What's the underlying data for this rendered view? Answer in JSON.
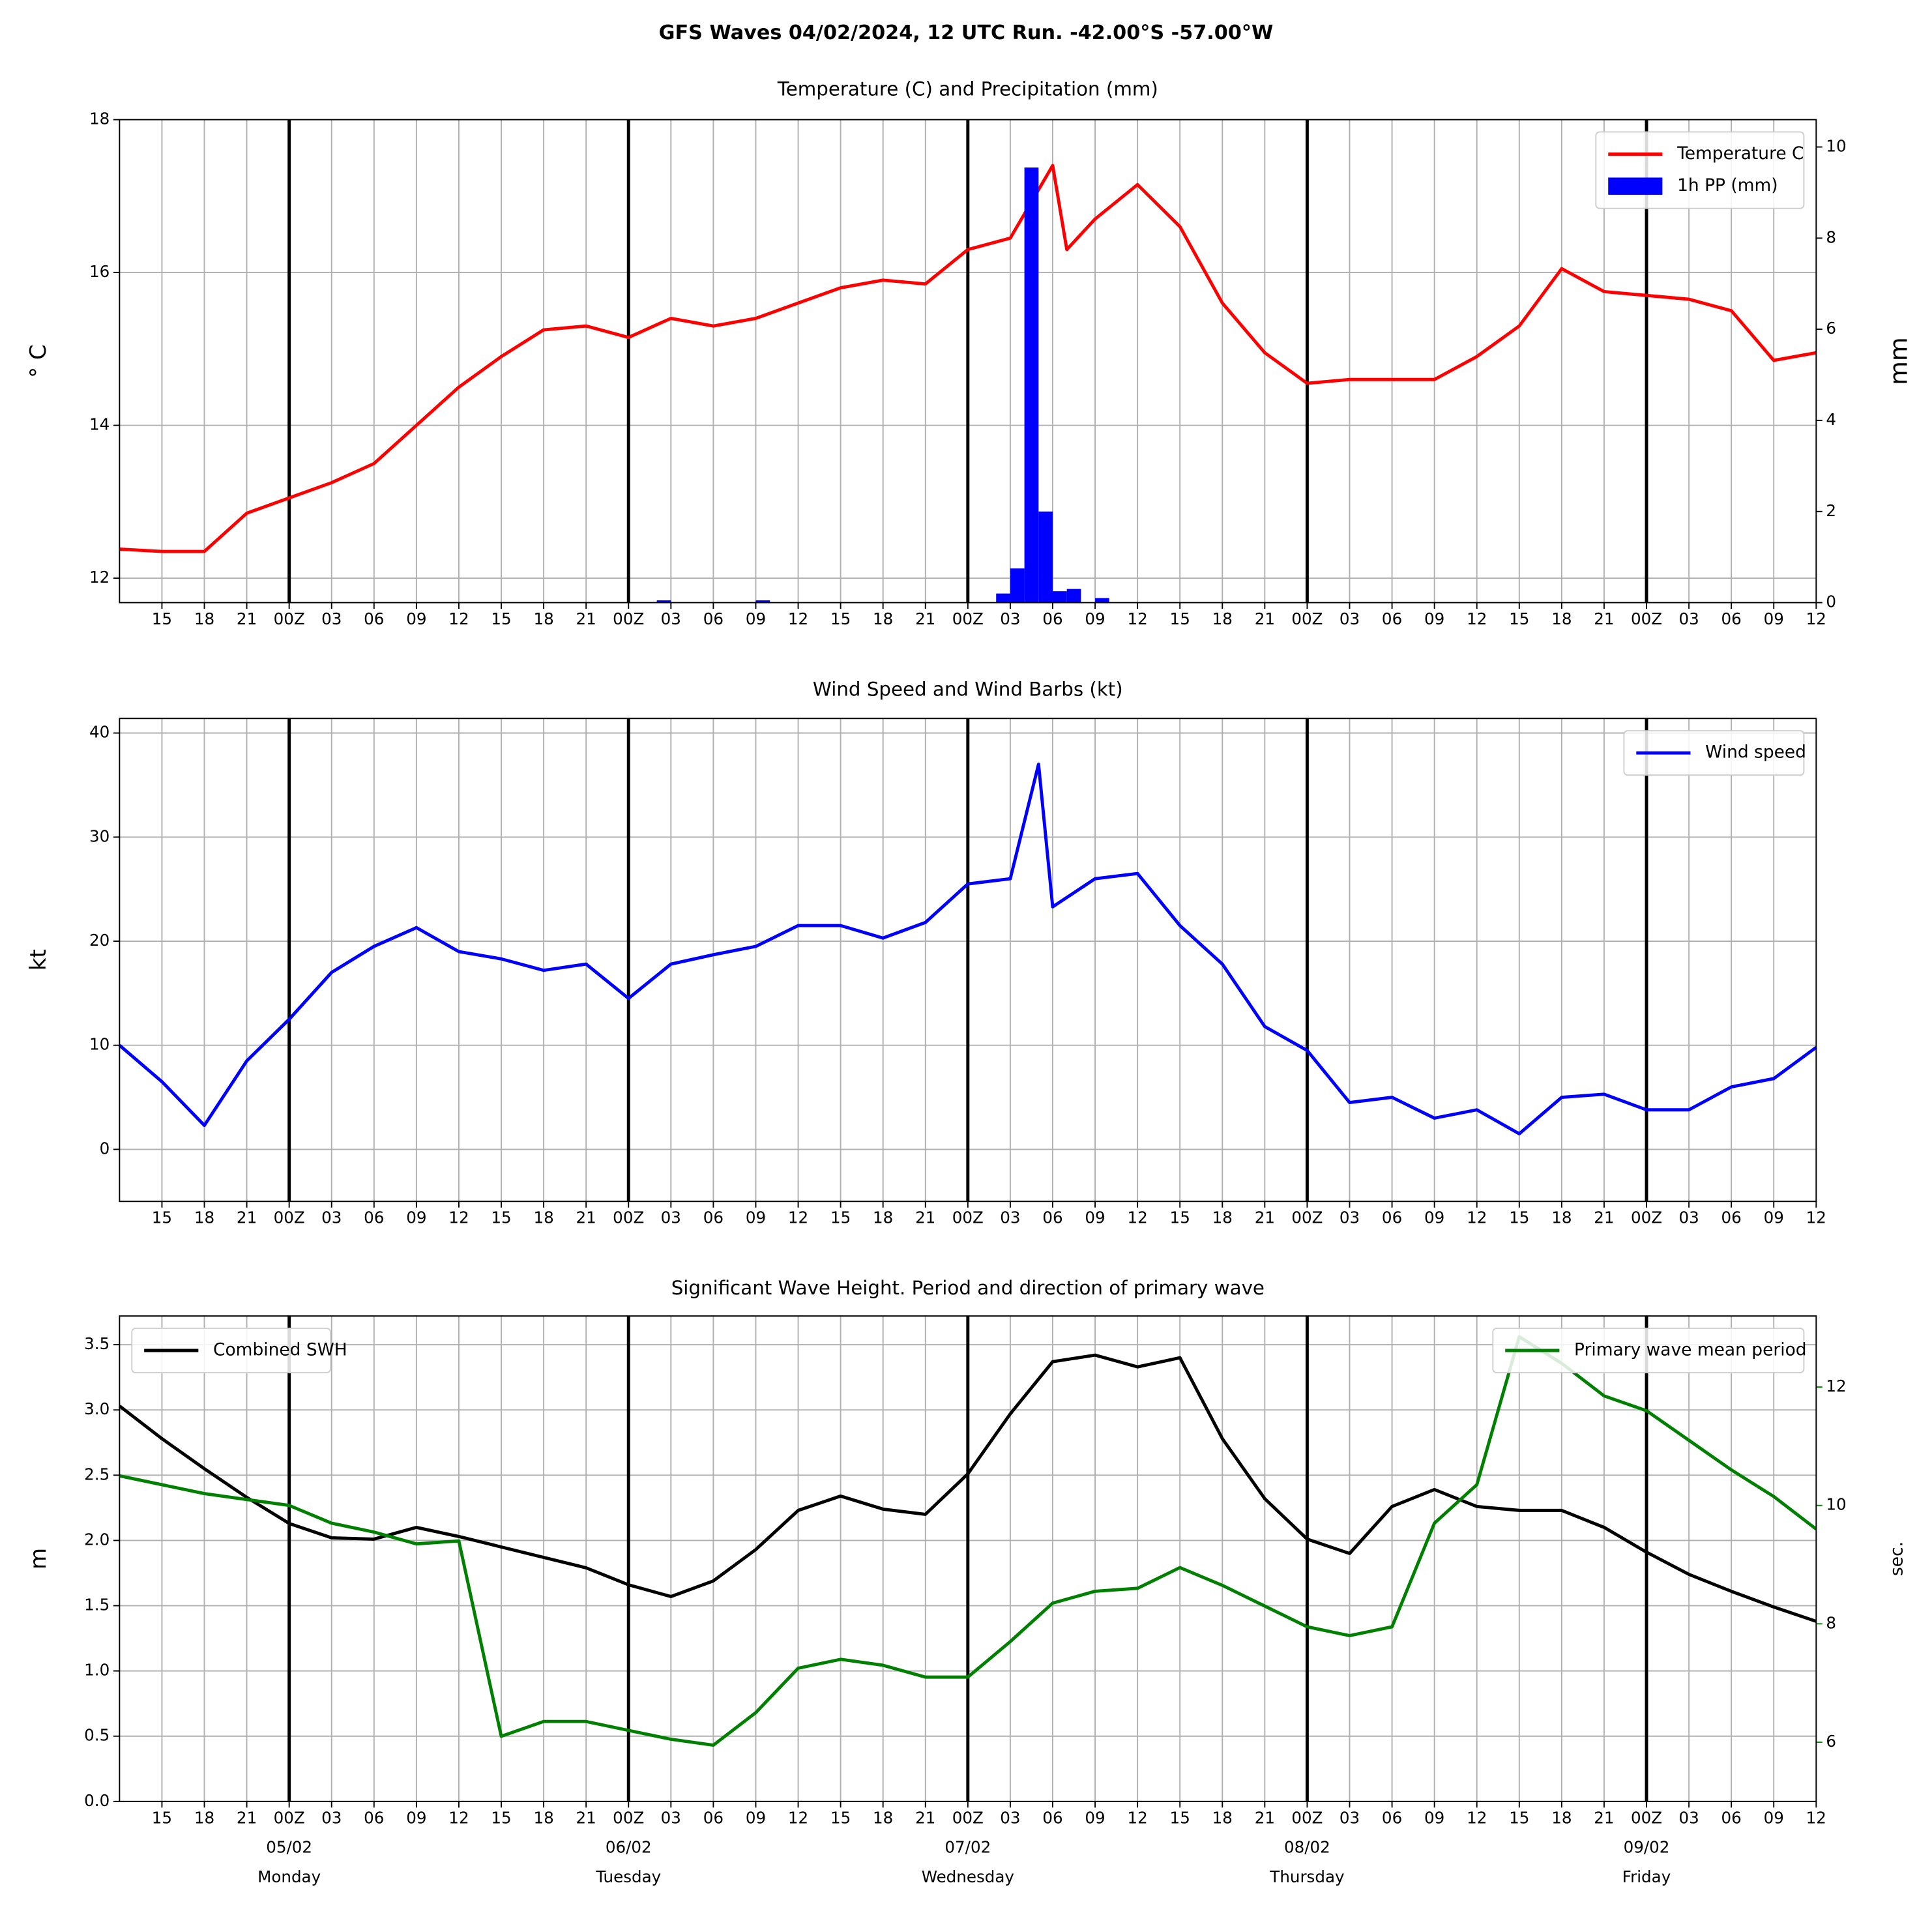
{
  "suptitle": "GFS Waves 04/02/2024, 12 UTC Run. -42.00°S -57.00°W",
  "chart_data": [
    {
      "type": "line",
      "title": "Temperature (C) and Precipitation (mm)",
      "ylabel": "° C",
      "y2label": "mm",
      "xlim": [
        0,
        120
      ],
      "ylim": [
        11.68,
        18.0
      ],
      "y2lim": [
        0,
        10.6
      ],
      "yticks": [
        12,
        14,
        16,
        18
      ],
      "y2ticks": [
        0,
        2,
        4,
        6,
        8,
        10
      ],
      "grid": true,
      "day_lines": [
        12,
        36,
        60,
        84,
        108
      ],
      "xticks": [
        {
          "value": 3,
          "label": "15"
        },
        {
          "value": 6,
          "label": "18"
        },
        {
          "value": 9,
          "label": "21"
        },
        {
          "value": 12,
          "label": "00Z"
        },
        {
          "value": 15,
          "label": "03"
        },
        {
          "value": 18,
          "label": "06"
        },
        {
          "value": 21,
          "label": "09"
        },
        {
          "value": 24,
          "label": "12"
        },
        {
          "value": 27,
          "label": "15"
        },
        {
          "value": 30,
          "label": "18"
        },
        {
          "value": 33,
          "label": "21"
        },
        {
          "value": 36,
          "label": "00Z"
        },
        {
          "value": 39,
          "label": "03"
        },
        {
          "value": 42,
          "label": "06"
        },
        {
          "value": 45,
          "label": "09"
        },
        {
          "value": 48,
          "label": "12"
        },
        {
          "value": 51,
          "label": "15"
        },
        {
          "value": 54,
          "label": "18"
        },
        {
          "value": 57,
          "label": "21"
        },
        {
          "value": 60,
          "label": "00Z"
        },
        {
          "value": 63,
          "label": "03"
        },
        {
          "value": 66,
          "label": "06"
        },
        {
          "value": 69,
          "label": "09"
        },
        {
          "value": 72,
          "label": "12"
        },
        {
          "value": 75,
          "label": "15"
        },
        {
          "value": 78,
          "label": "18"
        },
        {
          "value": 81,
          "label": "21"
        },
        {
          "value": 84,
          "label": "00Z"
        },
        {
          "value": 87,
          "label": "03"
        },
        {
          "value": 90,
          "label": "06"
        },
        {
          "value": 93,
          "label": "09"
        },
        {
          "value": 96,
          "label": "12"
        },
        {
          "value": 99,
          "label": "15"
        },
        {
          "value": 102,
          "label": "18"
        },
        {
          "value": 105,
          "label": "21"
        },
        {
          "value": 108,
          "label": "00Z"
        },
        {
          "value": 111,
          "label": "03"
        },
        {
          "value": 114,
          "label": "06"
        },
        {
          "value": 117,
          "label": "09"
        },
        {
          "value": 120,
          "label": "12"
        }
      ],
      "series": [
        {
          "name": "Temperature C",
          "type": "line",
          "color": "#ff0000",
          "axis": "y",
          "legend": "upper right",
          "x": [
            0,
            3,
            6,
            9,
            12,
            15,
            18,
            21,
            24,
            27,
            30,
            33,
            36,
            39,
            42,
            45,
            48,
            51,
            54,
            57,
            60,
            63,
            66,
            67,
            69,
            72,
            75,
            78,
            81,
            84,
            87,
            90,
            93,
            96,
            99,
            102,
            105,
            108,
            111,
            114,
            117,
            120
          ],
          "values": [
            12.38,
            12.35,
            12.35,
            12.85,
            13.05,
            13.25,
            13.5,
            14.0,
            14.5,
            14.9,
            15.25,
            15.3,
            15.15,
            15.4,
            15.3,
            15.4,
            15.6,
            15.8,
            15.9,
            15.85,
            16.3,
            16.45,
            17.4,
            16.3,
            16.7,
            17.15,
            16.6,
            15.6,
            14.95,
            14.55,
            14.6,
            14.6,
            14.6,
            14.9,
            15.3,
            16.05,
            15.75,
            15.7,
            15.65,
            15.5,
            14.85,
            14.95
          ]
        },
        {
          "name": "1h PP (mm)",
          "type": "bar",
          "color": "#0000ff",
          "axis": "y2",
          "legend": "upper right",
          "x": [
            38,
            45,
            62,
            63,
            64,
            65,
            66,
            67,
            69
          ],
          "values": [
            0.05,
            0.05,
            0.2,
            0.75,
            9.55,
            2.0,
            0.25,
            0.3,
            0.1
          ]
        }
      ]
    },
    {
      "type": "line",
      "title": "Wind Speed and Wind Barbs (kt)",
      "ylabel": "kt",
      "xlim": [
        0,
        120
      ],
      "ylim": [
        -5.0,
        41.4
      ],
      "yticks": [
        0,
        10,
        20,
        30,
        40
      ],
      "grid": true,
      "day_lines": [
        12,
        36,
        60,
        84,
        108
      ],
      "xticks": [
        {
          "value": 3,
          "label": "15"
        },
        {
          "value": 6,
          "label": "18"
        },
        {
          "value": 9,
          "label": "21"
        },
        {
          "value": 12,
          "label": "00Z"
        },
        {
          "value": 15,
          "label": "03"
        },
        {
          "value": 18,
          "label": "06"
        },
        {
          "value": 21,
          "label": "09"
        },
        {
          "value": 24,
          "label": "12"
        },
        {
          "value": 27,
          "label": "15"
        },
        {
          "value": 30,
          "label": "18"
        },
        {
          "value": 33,
          "label": "21"
        },
        {
          "value": 36,
          "label": "00Z"
        },
        {
          "value": 39,
          "label": "03"
        },
        {
          "value": 42,
          "label": "06"
        },
        {
          "value": 45,
          "label": "09"
        },
        {
          "value": 48,
          "label": "12"
        },
        {
          "value": 51,
          "label": "15"
        },
        {
          "value": 54,
          "label": "18"
        },
        {
          "value": 57,
          "label": "21"
        },
        {
          "value": 60,
          "label": "00Z"
        },
        {
          "value": 63,
          "label": "03"
        },
        {
          "value": 66,
          "label": "06"
        },
        {
          "value": 69,
          "label": "09"
        },
        {
          "value": 72,
          "label": "12"
        },
        {
          "value": 75,
          "label": "15"
        },
        {
          "value": 78,
          "label": "18"
        },
        {
          "value": 81,
          "label": "21"
        },
        {
          "value": 84,
          "label": "00Z"
        },
        {
          "value": 87,
          "label": "03"
        },
        {
          "value": 90,
          "label": "06"
        },
        {
          "value": 93,
          "label": "09"
        },
        {
          "value": 96,
          "label": "12"
        },
        {
          "value": 99,
          "label": "15"
        },
        {
          "value": 102,
          "label": "18"
        },
        {
          "value": 105,
          "label": "21"
        },
        {
          "value": 108,
          "label": "00Z"
        },
        {
          "value": 111,
          "label": "03"
        },
        {
          "value": 114,
          "label": "06"
        },
        {
          "value": 117,
          "label": "09"
        },
        {
          "value": 120,
          "label": "12"
        }
      ],
      "series": [
        {
          "name": "Wind speed",
          "type": "line",
          "color": "#0000ff",
          "axis": "y",
          "legend": "upper right",
          "x": [
            0,
            3,
            6,
            9,
            12,
            15,
            18,
            21,
            24,
            27,
            30,
            33,
            36,
            39,
            42,
            45,
            48,
            51,
            54,
            57,
            60,
            63,
            65,
            66,
            69,
            72,
            75,
            78,
            81,
            84,
            87,
            90,
            93,
            96,
            99,
            102,
            105,
            108,
            111,
            114,
            117,
            120
          ],
          "values": [
            10.0,
            6.5,
            2.3,
            8.5,
            12.5,
            17.0,
            19.5,
            21.3,
            19.0,
            18.3,
            17.2,
            17.8,
            14.5,
            17.8,
            18.7,
            19.5,
            21.5,
            21.5,
            20.3,
            21.8,
            25.5,
            26.0,
            37.0,
            23.3,
            26.0,
            26.5,
            21.5,
            17.8,
            11.8,
            9.5,
            4.5,
            5.0,
            3.0,
            3.8,
            1.5,
            5.0,
            5.3,
            3.8,
            3.8,
            6.0,
            6.8,
            9.8
          ]
        }
      ]
    },
    {
      "type": "line",
      "title": "Significant Wave Height. Period and direction of primary wave",
      "ylabel": "m",
      "y2label": "sec.",
      "y2color": "#008000",
      "xlim": [
        0,
        120
      ],
      "ylim": [
        0,
        3.72
      ],
      "y2lim": [
        5.0,
        13.2
      ],
      "grid": true,
      "yticks": [
        {
          "value": 0,
          "label": "0.0"
        },
        {
          "value": 0.5,
          "label": "0.5"
        },
        {
          "value": 1,
          "label": "1.0"
        },
        {
          "value": 1.5,
          "label": "1.5"
        },
        {
          "value": 2,
          "label": "2.0"
        },
        {
          "value": 2.5,
          "label": "2.5"
        },
        {
          "value": 3,
          "label": "3.0"
        },
        {
          "value": 3.5,
          "label": "3.5"
        }
      ],
      "y2ticks": [
        6,
        8,
        10,
        12
      ],
      "day_lines": [
        12,
        36,
        60,
        84,
        108
      ],
      "date_labels": [
        {
          "value": 12,
          "date": "05/02",
          "day": "Monday"
        },
        {
          "value": 36,
          "date": "06/02",
          "day": "Tuesday"
        },
        {
          "value": 60,
          "date": "07/02",
          "day": "Wednesday"
        },
        {
          "value": 84,
          "date": "08/02",
          "day": "Thursday"
        },
        {
          "value": 108,
          "date": "09/02",
          "day": "Friday"
        }
      ],
      "xticks": [
        {
          "value": 3,
          "label": "15"
        },
        {
          "value": 6,
          "label": "18"
        },
        {
          "value": 9,
          "label": "21"
        },
        {
          "value": 12,
          "label": "00Z"
        },
        {
          "value": 15,
          "label": "03"
        },
        {
          "value": 18,
          "label": "06"
        },
        {
          "value": 21,
          "label": "09"
        },
        {
          "value": 24,
          "label": "12"
        },
        {
          "value": 27,
          "label": "15"
        },
        {
          "value": 30,
          "label": "18"
        },
        {
          "value": 33,
          "label": "21"
        },
        {
          "value": 36,
          "label": "00Z"
        },
        {
          "value": 39,
          "label": "03"
        },
        {
          "value": 42,
          "label": "06"
        },
        {
          "value": 45,
          "label": "09"
        },
        {
          "value": 48,
          "label": "12"
        },
        {
          "value": 51,
          "label": "15"
        },
        {
          "value": 54,
          "label": "18"
        },
        {
          "value": 57,
          "label": "21"
        },
        {
          "value": 60,
          "label": "00Z"
        },
        {
          "value": 63,
          "label": "03"
        },
        {
          "value": 66,
          "label": "06"
        },
        {
          "value": 69,
          "label": "09"
        },
        {
          "value": 72,
          "label": "12"
        },
        {
          "value": 75,
          "label": "15"
        },
        {
          "value": 78,
          "label": "18"
        },
        {
          "value": 81,
          "label": "21"
        },
        {
          "value": 84,
          "label": "00Z"
        },
        {
          "value": 87,
          "label": "03"
        },
        {
          "value": 90,
          "label": "06"
        },
        {
          "value": 93,
          "label": "09"
        },
        {
          "value": 96,
          "label": "12"
        },
        {
          "value": 99,
          "label": "15"
        },
        {
          "value": 102,
          "label": "18"
        },
        {
          "value": 105,
          "label": "21"
        },
        {
          "value": 108,
          "label": "00Z"
        },
        {
          "value": 111,
          "label": "03"
        },
        {
          "value": 114,
          "label": "06"
        },
        {
          "value": 117,
          "label": "09"
        },
        {
          "value": 120,
          "label": "12"
        }
      ],
      "series": [
        {
          "name": "Combined SWH",
          "type": "line",
          "color": "#000000",
          "axis": "y",
          "legend": "upper left",
          "x": [
            0,
            3,
            6,
            9,
            12,
            15,
            18,
            21,
            24,
            27,
            30,
            33,
            36,
            39,
            42,
            45,
            48,
            51,
            54,
            57,
            60,
            63,
            66,
            69,
            72,
            75,
            78,
            81,
            84,
            87,
            90,
            93,
            96,
            99,
            102,
            105,
            108,
            111,
            114,
            117,
            120
          ],
          "values": [
            3.03,
            2.78,
            2.55,
            2.33,
            2.13,
            2.02,
            2.01,
            2.1,
            2.03,
            1.95,
            1.87,
            1.79,
            1.66,
            1.57,
            1.69,
            1.93,
            2.23,
            2.34,
            2.24,
            2.2,
            2.51,
            2.97,
            3.37,
            3.42,
            3.33,
            3.4,
            2.78,
            2.32,
            2.01,
            1.9,
            2.26,
            2.39,
            2.26,
            2.23,
            2.23,
            2.1,
            1.91,
            1.74,
            1.61,
            1.49,
            1.38
          ]
        },
        {
          "name": "Primary wave mean period",
          "type": "line",
          "color": "#008000",
          "axis": "y2",
          "legend": "upper right",
          "x": [
            0,
            3,
            6,
            9,
            12,
            15,
            18,
            21,
            24,
            27,
            30,
            33,
            36,
            39,
            42,
            45,
            48,
            51,
            54,
            57,
            60,
            63,
            66,
            69,
            72,
            75,
            78,
            81,
            84,
            87,
            90,
            93,
            96,
            99,
            102,
            105,
            108,
            111,
            114,
            117,
            120
          ],
          "values": [
            10.5,
            10.35,
            10.2,
            10.1,
            10.0,
            9.7,
            9.55,
            9.35,
            9.4,
            6.1,
            6.35,
            6.35,
            6.2,
            6.05,
            5.95,
            6.5,
            7.25,
            7.4,
            7.3,
            7.1,
            7.1,
            7.7,
            8.35,
            8.55,
            8.6,
            8.95,
            8.65,
            8.3,
            7.95,
            7.8,
            7.95,
            9.7,
            10.35,
            12.85,
            12.4,
            11.85,
            11.6,
            11.1,
            10.6,
            10.15,
            9.6
          ]
        }
      ]
    }
  ]
}
